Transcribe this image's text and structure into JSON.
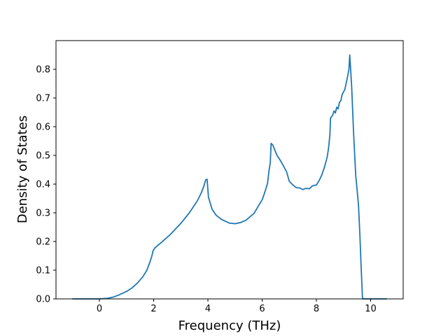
{
  "chart_data": {
    "type": "line",
    "title": "",
    "xlabel": "Frequency (THz)",
    "ylabel": "Density of States",
    "xlim": [
      -1.6,
      11.2
    ],
    "ylim": [
      0,
      0.9
    ],
    "xticks": [
      0,
      2,
      4,
      6,
      8,
      10
    ],
    "yticks": [
      0.0,
      0.1,
      0.2,
      0.3,
      0.4,
      0.5,
      0.6,
      0.7,
      0.8
    ],
    "grid": false,
    "legend": "none",
    "series": [
      {
        "color": "#1f77b4",
        "points": [
          [
            -1.0,
            0.0
          ],
          [
            -0.5,
            0.0
          ],
          [
            0.0,
            0.0
          ],
          [
            0.3,
            0.002
          ],
          [
            0.5,
            0.006
          ],
          [
            0.7,
            0.013
          ],
          [
            1.0,
            0.026
          ],
          [
            1.2,
            0.038
          ],
          [
            1.4,
            0.055
          ],
          [
            1.6,
            0.077
          ],
          [
            1.75,
            0.1
          ],
          [
            1.85,
            0.125
          ],
          [
            1.93,
            0.148
          ],
          [
            1.98,
            0.168
          ],
          [
            2.05,
            0.178
          ],
          [
            2.15,
            0.186
          ],
          [
            2.3,
            0.198
          ],
          [
            2.6,
            0.223
          ],
          [
            3.0,
            0.263
          ],
          [
            3.3,
            0.298
          ],
          [
            3.6,
            0.34
          ],
          [
            3.75,
            0.368
          ],
          [
            3.85,
            0.393
          ],
          [
            3.92,
            0.415
          ],
          [
            3.97,
            0.417
          ],
          [
            4.02,
            0.355
          ],
          [
            4.15,
            0.313
          ],
          [
            4.3,
            0.292
          ],
          [
            4.5,
            0.277
          ],
          [
            4.8,
            0.264
          ],
          [
            5.0,
            0.262
          ],
          [
            5.2,
            0.266
          ],
          [
            5.4,
            0.274
          ],
          [
            5.7,
            0.298
          ],
          [
            5.9,
            0.33
          ],
          [
            6.0,
            0.345
          ],
          [
            6.1,
            0.372
          ],
          [
            6.2,
            0.403
          ],
          [
            6.25,
            0.445
          ],
          [
            6.3,
            0.475
          ],
          [
            6.33,
            0.542
          ],
          [
            6.4,
            0.535
          ],
          [
            6.45,
            0.522
          ],
          [
            6.55,
            0.5
          ],
          [
            6.7,
            0.478
          ],
          [
            6.9,
            0.443
          ],
          [
            7.0,
            0.41
          ],
          [
            7.1,
            0.4
          ],
          [
            7.25,
            0.388
          ],
          [
            7.4,
            0.386
          ],
          [
            7.5,
            0.381
          ],
          [
            7.6,
            0.385
          ],
          [
            7.75,
            0.384
          ],
          [
            7.85,
            0.394
          ],
          [
            8.0,
            0.397
          ],
          [
            8.1,
            0.412
          ],
          [
            8.2,
            0.432
          ],
          [
            8.3,
            0.46
          ],
          [
            8.4,
            0.495
          ],
          [
            8.45,
            0.527
          ],
          [
            8.5,
            0.575
          ],
          [
            8.52,
            0.63
          ],
          [
            8.6,
            0.64
          ],
          [
            8.65,
            0.655
          ],
          [
            8.7,
            0.648
          ],
          [
            8.75,
            0.668
          ],
          [
            8.8,
            0.662
          ],
          [
            8.85,
            0.685
          ],
          [
            8.9,
            0.69
          ],
          [
            8.95,
            0.712
          ],
          [
            9.05,
            0.73
          ],
          [
            9.15,
            0.775
          ],
          [
            9.2,
            0.8
          ],
          [
            9.23,
            0.85
          ],
          [
            9.3,
            0.74
          ],
          [
            9.37,
            0.58
          ],
          [
            9.45,
            0.43
          ],
          [
            9.55,
            0.33
          ],
          [
            9.6,
            0.23
          ],
          [
            9.65,
            0.11
          ],
          [
            9.7,
            0.0
          ],
          [
            10.0,
            0.0
          ],
          [
            10.6,
            0.0
          ]
        ]
      }
    ]
  }
}
